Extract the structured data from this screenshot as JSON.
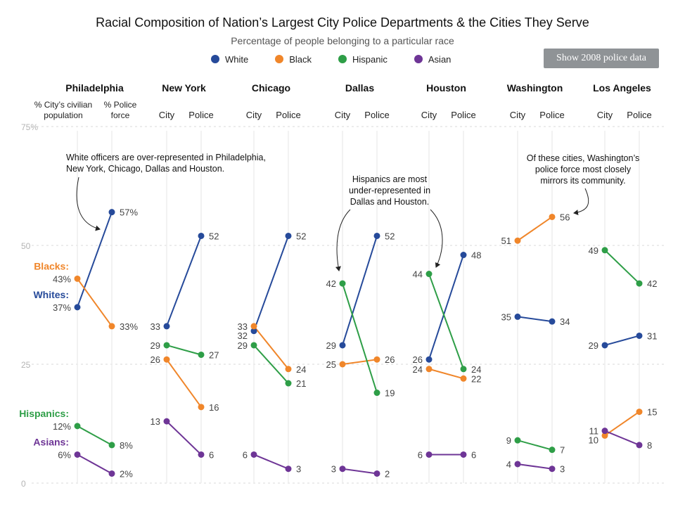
{
  "title": "Racial Composition of Nation’s Largest City Police Departments & the Cities They Serve",
  "subtitle": "Percentage of people belonging to a particular race",
  "toggle_button_label": "Show 2008 police data",
  "legend": [
    {
      "name": "White",
      "color": "#264a9a"
    },
    {
      "name": "Black",
      "color": "#f0862a"
    },
    {
      "name": "Hispanic",
      "color": "#2e9e47"
    },
    {
      "name": "Asian",
      "color": "#6e3596"
    }
  ],
  "chart_data": {
    "type": "line",
    "subtype": "slopegraph",
    "ylim": [
      0,
      75
    ],
    "yticks": [
      {
        "value": 0,
        "label": "0"
      },
      {
        "value": 25,
        "label": "25"
      },
      {
        "value": 50,
        "label": "50"
      },
      {
        "value": 75,
        "label": "75%"
      }
    ],
    "column_headers": {
      "first": [
        "% City’s civilian",
        "population"
      ],
      "second": [
        "% Police",
        "force"
      ],
      "city": "City",
      "police": "Police"
    },
    "series_labels": {
      "White": "Whites:",
      "Black": "Blacks:",
      "Hispanic": "Hispanics:",
      "Asian": "Asians:"
    },
    "panels": [
      {
        "city": "Philadelphia",
        "values": {
          "White": [
            37,
            57
          ],
          "Black": [
            43,
            33
          ],
          "Hispanic": [
            12,
            8
          ],
          "Asian": [
            6,
            2
          ]
        },
        "labels": {
          "White": [
            "37%",
            "57%"
          ],
          "Black": [
            "43%",
            "33%"
          ],
          "Hispanic": [
            "12%",
            "8%"
          ],
          "Asian": [
            "6%",
            "2%"
          ]
        }
      },
      {
        "city": "New York",
        "values": {
          "White": [
            33,
            52
          ],
          "Black": [
            26,
            16
          ],
          "Hispanic": [
            29,
            27
          ],
          "Asian": [
            13,
            6
          ]
        },
        "labels": {
          "White": [
            "33",
            "52"
          ],
          "Black": [
            "26",
            "16"
          ],
          "Hispanic": [
            "29",
            "27"
          ],
          "Asian": [
            "13",
            "6"
          ]
        }
      },
      {
        "city": "Chicago",
        "values": {
          "White": [
            32,
            52
          ],
          "Black": [
            33,
            24
          ],
          "Hispanic": [
            29,
            21
          ],
          "Asian": [
            6,
            3
          ]
        },
        "labels": {
          "White": [
            "32",
            "52"
          ],
          "Black": [
            "33",
            "24"
          ],
          "Hispanic": [
            "29",
            "21"
          ],
          "Asian": [
            "6",
            "3"
          ]
        }
      },
      {
        "city": "Dallas",
        "values": {
          "White": [
            29,
            52
          ],
          "Black": [
            25,
            26
          ],
          "Hispanic": [
            42,
            19
          ],
          "Asian": [
            3,
            2
          ]
        },
        "labels": {
          "White": [
            "29",
            "52"
          ],
          "Black": [
            "25",
            "26"
          ],
          "Hispanic": [
            "42",
            "19"
          ],
          "Asian": [
            "3",
            "2"
          ]
        }
      },
      {
        "city": "Houston",
        "values": {
          "White": [
            26,
            48
          ],
          "Black": [
            24,
            22
          ],
          "Hispanic": [
            44,
            24
          ],
          "Asian": [
            6,
            6
          ]
        },
        "labels": {
          "White": [
            "26",
            "48"
          ],
          "Black": [
            "24",
            "22"
          ],
          "Hispanic": [
            "44",
            "24"
          ],
          "Asian": [
            "6",
            "6"
          ]
        }
      },
      {
        "city": "Washington",
        "values": {
          "White": [
            35,
            34
          ],
          "Black": [
            51,
            56
          ],
          "Hispanic": [
            9,
            7
          ],
          "Asian": [
            4,
            3
          ]
        },
        "labels": {
          "White": [
            "35",
            "34"
          ],
          "Black": [
            "51",
            "56"
          ],
          "Hispanic": [
            "9",
            "7"
          ],
          "Asian": [
            "4",
            "3"
          ]
        }
      },
      {
        "city": "Los Angeles",
        "values": {
          "White": [
            29,
            31
          ],
          "Black": [
            10,
            15
          ],
          "Hispanic": [
            49,
            42
          ],
          "Asian": [
            11,
            8
          ]
        },
        "labels": {
          "White": [
            "29",
            "31"
          ],
          "Black": [
            "10",
            "15"
          ],
          "Hispanic": [
            "49",
            "42"
          ],
          "Asian": [
            "11",
            "8"
          ]
        }
      }
    ],
    "annotations": [
      {
        "lines": [
          "White officers are over-represented in Philadelphia,",
          "New York, Chicago, Dallas and Houston."
        ]
      },
      {
        "lines": [
          "Hispanics are most",
          "under-represented in",
          "Dallas and Houston."
        ]
      },
      {
        "lines": [
          "Of these cities, Washington’s",
          "police force most closely",
          "mirrors its community."
        ]
      }
    ]
  }
}
